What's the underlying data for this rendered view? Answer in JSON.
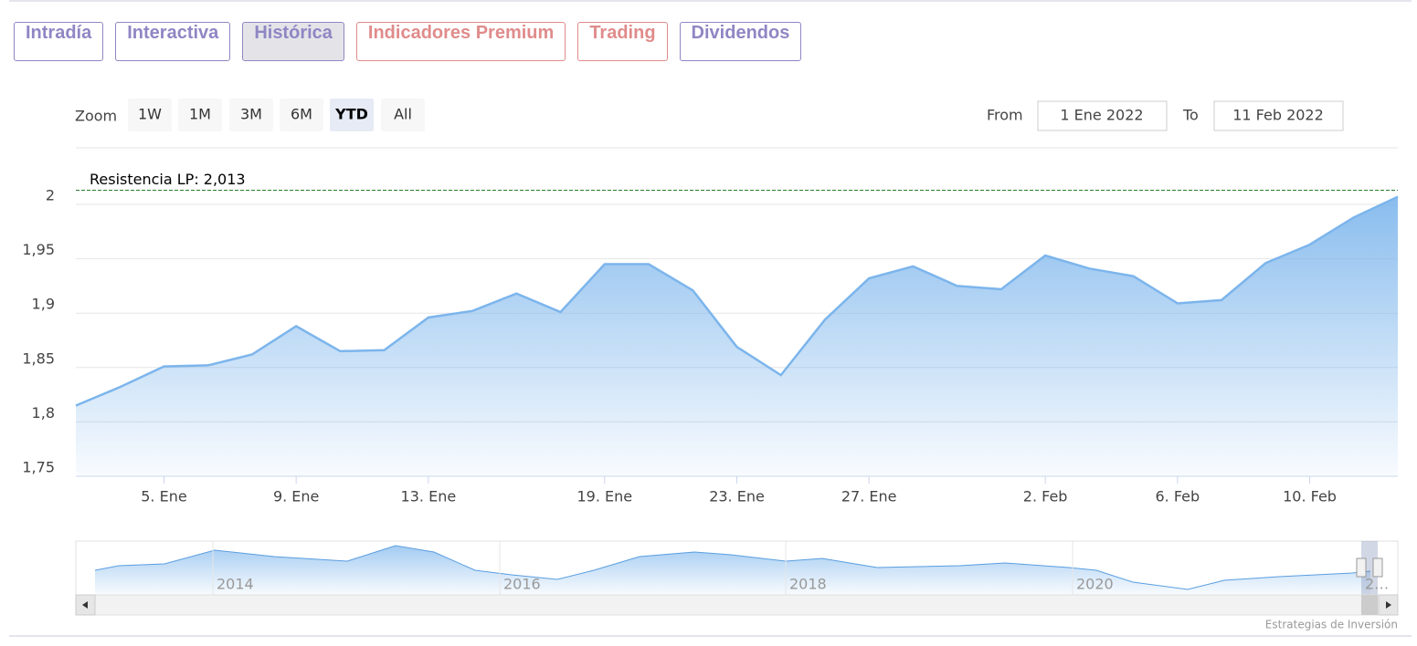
{
  "tabs": [
    "Intradía",
    "Interactiva",
    "Histórica",
    "Indicadores Premium",
    "Trading",
    "Dividendos"
  ],
  "zoom": {
    "label": "Zoom",
    "buttons": [
      "1W",
      "1M",
      "3M",
      "6M",
      "YTD",
      "All"
    ],
    "selected": 4
  },
  "range": {
    "from_label": "From",
    "from": "1 Ene 2022",
    "to_label": "To",
    "to": "11 Feb 2022"
  },
  "chart_data": {
    "type": "area",
    "categories": [
      null,
      null,
      "5. Ene",
      null,
      null,
      "9. Ene",
      null,
      null,
      "13. Ene",
      null,
      null,
      null,
      "19. Ene",
      null,
      null,
      "23. Ene",
      null,
      null,
      "27. Ene",
      null,
      null,
      null,
      "2. Feb",
      null,
      null,
      "6. Feb",
      null,
      null,
      "10. Feb",
      null,
      null
    ],
    "series": [
      {
        "color": "#7cb5ec",
        "values": [
          1.815,
          1.832,
          1.851,
          1.852,
          1.862,
          1.888,
          1.865,
          1.866,
          1.896,
          1.902,
          1.918,
          1.901,
          1.945,
          1.945,
          1.921,
          1.869,
          1.843,
          1.894,
          1.932,
          1.943,
          1.925,
          1.922,
          1.953,
          1.941,
          1.934,
          1.909,
          1.912,
          1.946,
          1.963,
          1.988,
          2.007
        ]
      }
    ],
    "ylim": [
      1.75,
      2.052
    ],
    "yticks": [
      {
        "value": 1.75,
        "label": "1,75"
      },
      {
        "value": 1.8,
        "label": "1,8"
      },
      {
        "value": 1.85,
        "label": "1,85"
      },
      {
        "value": 1.9,
        "label": "1,9"
      },
      {
        "value": 1.95,
        "label": "1,95"
      },
      2
    ],
    "grid": true,
    "annotations": [
      {
        "value": 2.013,
        "label": "Resistencia LP: 2,013",
        "color": "#2a7a2a"
      }
    ]
  },
  "navigator": {
    "labels": [
      "2014",
      "2016",
      "2018",
      "2020",
      "2…"
    ]
  },
  "credit": "Estrategias de Inversión"
}
